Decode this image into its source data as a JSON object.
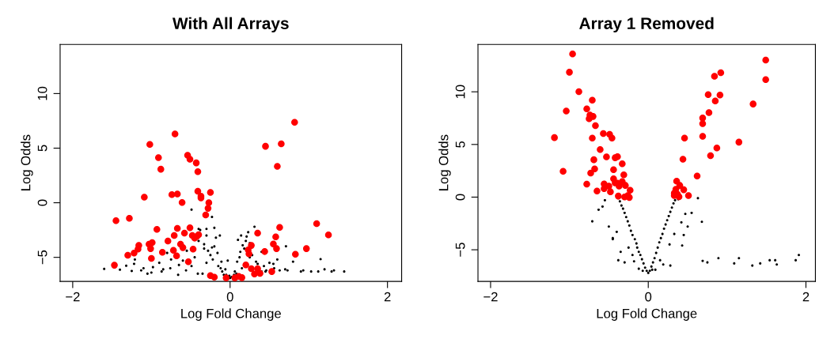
{
  "chart_data": [
    {
      "type": "scatter",
      "title": "With All Arrays",
      "xlabel": "Log Fold Change",
      "ylabel": "Log Odds",
      "xlim": [
        -2.16,
        2.18
      ],
      "ylim": [
        -7.2,
        14.5
      ],
      "xticks": [
        {
          "value": -2,
          "label": "−2"
        },
        0,
        2
      ],
      "yticks": [
        {
          "value": -5,
          "label": "−5"
        },
        0,
        5,
        10
      ],
      "marker": "circle",
      "grid": false,
      "legend": false,
      "series": [
        {
          "color": "#000000",
          "x": [
            -1.6,
            -1.4,
            -1.32,
            -1.25,
            -1.21,
            -1.22,
            -1.13,
            -1.05,
            -0.98,
            -0.87,
            -0.76,
            -0.66,
            -0.8,
            -0.56,
            -0.49,
            -0.41,
            -0.49,
            -0.23,
            -0.4,
            -0.3,
            -0.2,
            -0.13,
            -0.33,
            -0.23,
            -0.16,
            -0.11,
            -0.06,
            -0.01,
            0.06,
            0.09,
            0.13,
            0.16,
            0.14,
            0.23,
            0.31,
            0.21,
            0.33,
            0.43,
            0.56,
            0.71,
            0.8,
            0.93,
            1.15,
            1.12,
            1.32,
            1.45,
            1.29,
            1.03,
            0.73,
            0.63,
            0.46,
            -0.35,
            -0.3,
            -0.25,
            -0.2,
            -0.18,
            0.2,
            0.25,
            0.45,
            0.15,
            -0.1,
            0.0,
            -0.05,
            0.05,
            -0.45,
            -0.6,
            -0.9,
            -1.1,
            0.4,
            0.5,
            0.6,
            0.4,
            -0.3,
            -0.38,
            -0.15,
            -0.08,
            0.08,
            0.12,
            0.18,
            0.28,
            0.35,
            -0.28,
            -0.22,
            -0.12,
            0.02,
            -0.03,
            0.1,
            -0.33,
            -0.65,
            -0.85,
            -1.0,
            -0.75,
            0.55,
            0.7,
            0.9,
            1.2,
            0.25,
            -0.4,
            -0.55
          ],
          "values": [
            -6.06,
            -6.13,
            -5.77,
            -6.25,
            -5.2,
            -5.6,
            -6.2,
            -6.5,
            -5.9,
            -6.3,
            -6.0,
            -6.6,
            -4.6,
            -6.2,
            -5.8,
            -6.5,
            -0.63,
            -1.3,
            -2.4,
            -2.4,
            -2.3,
            -3.0,
            -3.8,
            -4.1,
            -4.6,
            -5.4,
            -6.1,
            -6.7,
            -6.3,
            -5.4,
            -4.5,
            -3.9,
            -3.0,
            -2.7,
            -2.2,
            -3.1,
            -5.4,
            -5.8,
            -6.0,
            -3.99,
            -5.4,
            -6.2,
            -5.17,
            -6.3,
            -6.2,
            -6.3,
            -6.3,
            -6.3,
            -6.2,
            -6.2,
            -6.2,
            -6.5,
            -5.5,
            -4.8,
            -4.0,
            -3.2,
            -3.5,
            -5.0,
            -6.3,
            -6.0,
            -6.3,
            -6.9,
            -6.6,
            -6.6,
            -5.0,
            -5.3,
            -5.5,
            -6.0,
            -6.3,
            -5.5,
            -5.2,
            -4.5,
            -3.0,
            -2.5,
            -5.8,
            -6.6,
            -6.5,
            -5.0,
            -4.2,
            -4.8,
            -5.6,
            -4.4,
            -5.2,
            -6.0,
            -6.8,
            -5.3,
            -3.4,
            -4.2,
            -5.7,
            -6.1,
            -6.4,
            -5.2,
            -5.6,
            -6.1,
            -6.3,
            -6.1,
            -3.7,
            -3.5,
            -4.4
          ]
        },
        {
          "color": "#ff0000",
          "x": [
            0.82,
            -0.7,
            -1.02,
            0.45,
            0.65,
            -0.91,
            -0.54,
            -0.51,
            -0.43,
            -0.88,
            -0.41,
            0.6,
            -0.41,
            -0.25,
            -0.74,
            -0.67,
            -0.37,
            -0.37,
            -1.09,
            -0.61,
            -0.27,
            -0.28,
            -0.31,
            -1.45,
            -1.28,
            1.1,
            1.25,
            0.63,
            0.58,
            0.55,
            0.59,
            0.44,
            0.83,
            0.97,
            0.35,
            0.27,
            0.23,
            0.24,
            0.2,
            0.27,
            0.35,
            0.31,
            0.38,
            0.53,
            0.11,
            0.06,
            0.15,
            -0.05,
            -0.25,
            -0.2,
            -0.93,
            -0.67,
            -0.51,
            -0.71,
            -0.58,
            -0.48,
            -0.45,
            -0.4,
            -0.42,
            -0.79,
            -0.63,
            -0.6,
            -0.47,
            -0.72,
            -0.68,
            -0.86,
            -0.99,
            -1.03,
            -1.01,
            -1.16,
            -1.17,
            -1.22,
            -1.3,
            -1.0,
            -0.53,
            -1.47
          ],
          "values": [
            7.37,
            6.3,
            5.34,
            5.17,
            5.39,
            4.13,
            4.35,
            3.99,
            3.65,
            3.07,
            2.85,
            3.33,
            1.06,
            0.94,
            0.75,
            0.8,
            0.6,
            0.44,
            0.51,
            0.02,
            0.0,
            -0.51,
            -1.11,
            -1.64,
            -1.43,
            -1.91,
            -2.95,
            -2.25,
            -3.12,
            -3.77,
            -4.2,
            -4.47,
            -4.71,
            -4.2,
            -2.78,
            -3.91,
            -4.32,
            -4.68,
            -5.7,
            -6.04,
            -6.04,
            -6.52,
            -6.47,
            -6.3,
            -6.74,
            -6.88,
            -6.86,
            -6.88,
            -6.67,
            -6.81,
            -2.44,
            -2.34,
            -2.29,
            -3.0,
            -2.78,
            -3.0,
            -3.24,
            -2.92,
            -3.07,
            -3.5,
            -3.79,
            -4.11,
            -4.25,
            -4.35,
            -4.86,
            -4.54,
            -3.65,
            -3.8,
            -4.2,
            -3.91,
            -4.25,
            -4.61,
            -4.81,
            -5.1,
            -5.41,
            -5.72
          ]
        }
      ]
    },
    {
      "type": "scatter",
      "title": "Array 1 Removed",
      "xlabel": "Log Fold Change",
      "ylabel": "Log Odds",
      "xlim": [
        -2.16,
        2.12
      ],
      "ylim": [
        -8.0,
        14.5
      ],
      "xticks": [
        {
          "value": -2,
          "label": "−2"
        },
        0,
        2
      ],
      "yticks": [
        {
          "value": -5,
          "label": "−5"
        },
        0,
        5,
        10
      ],
      "marker": "circle",
      "grid": false,
      "legend": false,
      "series": [
        {
          "color": "#000000",
          "x": [
            0.0,
            -0.02,
            0.02,
            -0.04,
            0.04,
            -0.06,
            0.06,
            -0.08,
            0.08,
            -0.1,
            0.1,
            -0.12,
            0.12,
            -0.14,
            0.14,
            -0.15,
            0.16,
            -0.17,
            0.18,
            -0.2,
            0.2,
            -0.22,
            0.22,
            -0.24,
            0.24,
            -0.26,
            0.26,
            -0.28,
            0.28,
            -0.3,
            0.3,
            -0.32,
            0.32,
            -0.34,
            0.34,
            -0.36,
            -0.38,
            0.38,
            -0.2,
            0.15,
            -0.25,
            0.27,
            -0.35,
            0.33,
            -0.45,
            0.42,
            -0.5,
            0.47,
            -0.12,
            0.09,
            0.63,
            0.68,
            -0.71,
            0.69,
            0.75,
            0.89,
            1.09,
            1.15,
            1.32,
            1.42,
            1.54,
            1.61,
            1.63,
            1.87,
            1.91,
            -0.38,
            0.43,
            -0.63,
            -0.58,
            -0.55,
            -0.45,
            -0.4,
            0.5,
            0.55,
            0.45,
            -0.3,
            0.28,
            -0.18,
            0.19,
            -0.07,
            0.05
          ],
          "values": [
            -7.2,
            -7.0,
            -7.0,
            -6.7,
            -6.6,
            -6.3,
            -6.2,
            -5.9,
            -5.8,
            -5.5,
            -5.3,
            -5.2,
            -4.8,
            -4.8,
            -4.3,
            -4.4,
            -3.9,
            -4.0,
            -3.5,
            -3.6,
            -3.0,
            -3.2,
            -2.6,
            -2.7,
            -2.2,
            -2.3,
            -1.8,
            -1.9,
            -1.4,
            -1.5,
            -1.0,
            -1.1,
            -0.6,
            -0.8,
            -0.3,
            -0.4,
            -0.1,
            -0.2,
            -5.5,
            -6.0,
            -4.8,
            -4.5,
            -5.2,
            -3.5,
            -3.9,
            -2.4,
            -2.8,
            -1.6,
            -6.8,
            -6.9,
            -0.1,
            -2.35,
            -2.3,
            -6.06,
            -6.2,
            -5.8,
            -6.3,
            -5.8,
            -6.5,
            -6.3,
            -6.0,
            -6.0,
            -6.4,
            -6.0,
            -5.5,
            -6.0,
            -4.6,
            -1.2,
            -0.9,
            -0.3,
            -4.0,
            -3.3,
            -2.8,
            -1.5,
            -3.6,
            -6.2,
            -6.5,
            -6.1,
            -6.4,
            -7.0,
            -6.9
          ]
        },
        {
          "color": "#ff0000",
          "x": [
            -0.96,
            -1.0,
            -0.88,
            -0.71,
            -1.04,
            -0.78,
            -0.74,
            -0.7,
            -0.75,
            -0.67,
            -1.19,
            -0.71,
            -0.57,
            -0.49,
            -0.46,
            -0.61,
            -0.53,
            -0.42,
            -0.39,
            -0.69,
            -0.33,
            -1.08,
            -0.68,
            -0.73,
            -0.44,
            -0.31,
            -0.44,
            -0.42,
            -0.39,
            -0.33,
            -0.56,
            -0.5,
            -0.37,
            -0.29,
            -0.78,
            -0.65,
            -0.56,
            -0.48,
            -0.23,
            -0.38,
            -0.3,
            -0.26,
            -0.24,
            1.49,
            1.49,
            0.92,
            0.84,
            0.76,
            0.91,
            0.85,
            1.33,
            0.77,
            0.69,
            0.69,
            0.69,
            0.46,
            1.15,
            0.87,
            0.79,
            0.44,
            0.62,
            0.36,
            0.4,
            0.35,
            0.33,
            0.37,
            0.45,
            0.51,
            0.33,
            0.39
          ],
          "values": [
            13.6,
            11.86,
            10.02,
            9.2,
            8.17,
            8.38,
            7.8,
            7.66,
            7.44,
            6.79,
            5.65,
            5.6,
            6.04,
            5.96,
            5.6,
            4.52,
            3.82,
            3.74,
            3.84,
            3.55,
            3.16,
            2.46,
            2.68,
            2.29,
            2.61,
            2.12,
            1.74,
            1.35,
            1.33,
            1.47,
            1.26,
            1.04,
            1.04,
            1.11,
            1.23,
            0.58,
            0.8,
            0.51,
            0.65,
            0.1,
            0.02,
            0.14,
            -0.03,
            13.02,
            11.16,
            11.81,
            11.47,
            9.73,
            9.69,
            9.13,
            8.84,
            8.02,
            7.51,
            6.98,
            5.77,
            5.6,
            5.22,
            4.66,
            3.94,
            3.6,
            2.0,
            1.52,
            1.11,
            0.75,
            0.38,
            0.27,
            0.7,
            0.14,
            0.14,
            0.03
          ]
        }
      ]
    }
  ]
}
